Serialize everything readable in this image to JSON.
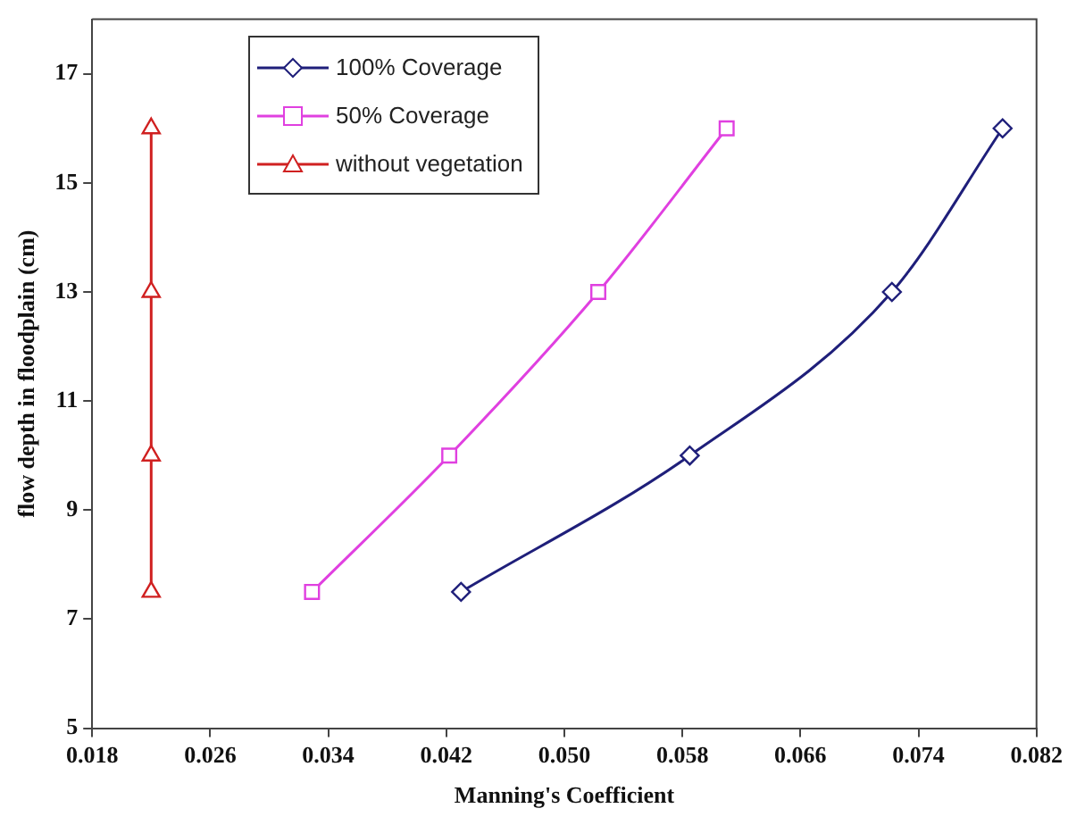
{
  "chart_data": {
    "type": "line",
    "xlabel": "Manning's Coefficient",
    "ylabel": "flow depth in floodplain (cm)",
    "xlim": [
      0.018,
      0.082
    ],
    "xticks": [
      {
        "value": 0.018,
        "label": "0.018"
      },
      {
        "value": 0.026,
        "label": "0.026"
      },
      {
        "value": 0.034,
        "label": "0.034"
      },
      {
        "value": 0.042,
        "label": "0.042"
      },
      {
        "value": 0.05,
        "label": "0.050"
      },
      {
        "value": 0.058,
        "label": "0.058"
      },
      {
        "value": 0.066,
        "label": "0.066"
      },
      {
        "value": 0.074,
        "label": "0.074"
      },
      {
        "value": 0.082,
        "label": "0.082"
      }
    ],
    "ylim": [
      5,
      18
    ],
    "yticks": [
      5,
      7,
      9,
      11,
      13,
      15,
      17
    ],
    "grid": false,
    "legend": "top left",
    "series": [
      {
        "name": "100% Coverage",
        "color": "#1f1f7a",
        "marker": "diamond",
        "x": [
          0.043,
          0.0585,
          0.0722,
          0.0797
        ],
        "values": [
          7.5,
          10,
          13,
          16
        ]
      },
      {
        "name": "50% Coverage",
        "color": "#e040e0",
        "marker": "square",
        "x": [
          0.0329,
          0.0422,
          0.0523,
          0.061
        ],
        "values": [
          7.5,
          10,
          13,
          16
        ]
      },
      {
        "name": "without vegetation",
        "color": "#d02020",
        "marker": "triangle",
        "x": [
          0.022,
          0.022,
          0.022,
          0.022
        ],
        "values": [
          7.5,
          10,
          13,
          16
        ]
      }
    ]
  }
}
